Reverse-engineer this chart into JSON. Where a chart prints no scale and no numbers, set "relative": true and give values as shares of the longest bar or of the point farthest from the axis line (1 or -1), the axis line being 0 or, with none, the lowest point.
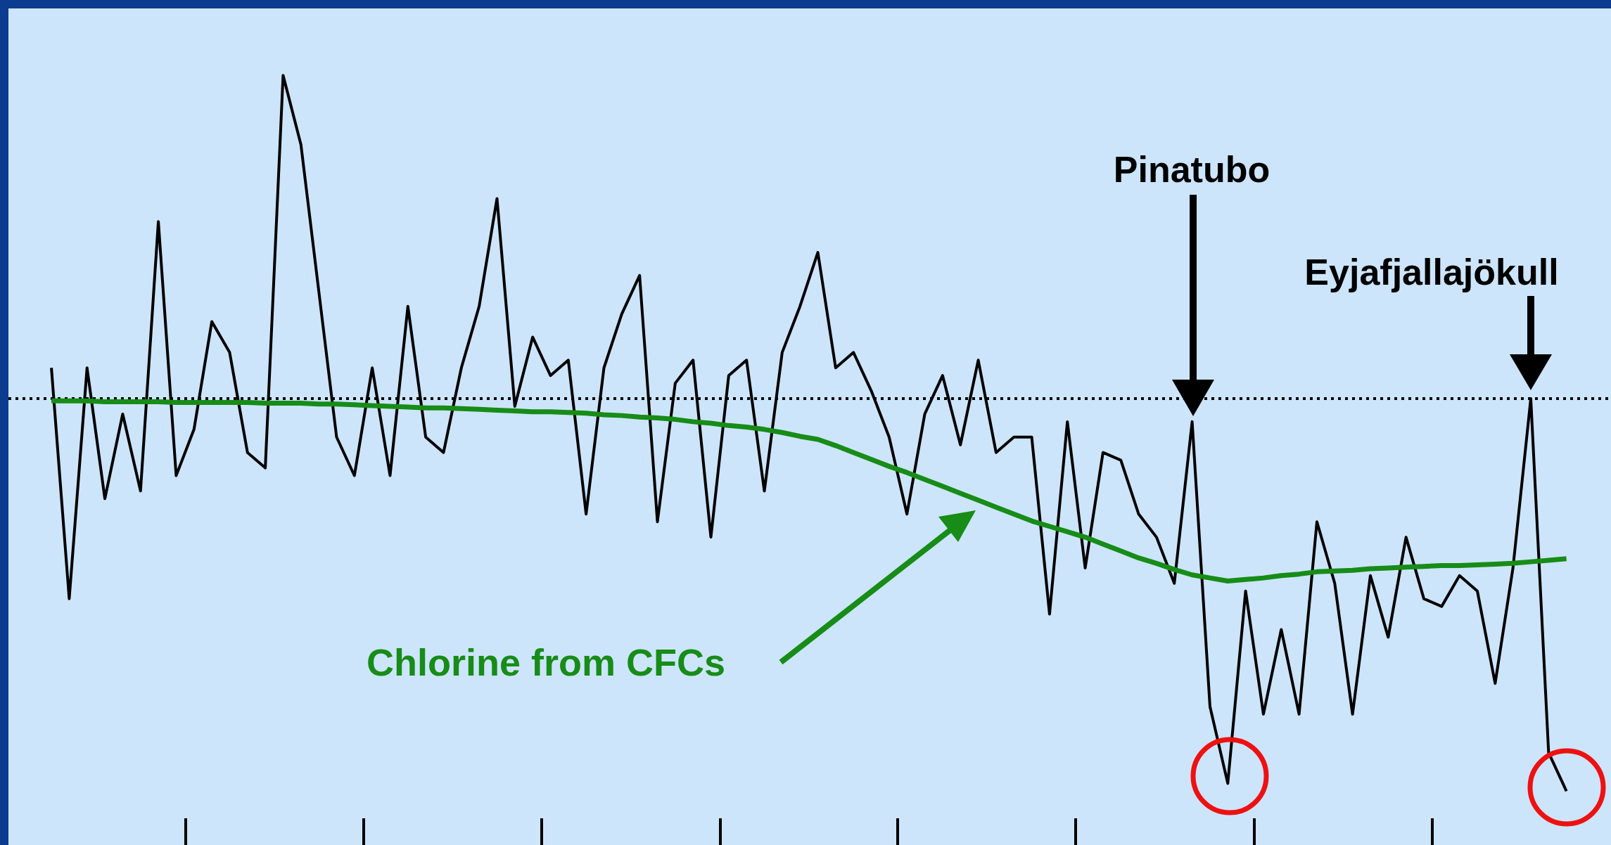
{
  "chart_data": {
    "type": "line",
    "relative": true,
    "categories": [
      null,
      null,
      null,
      null,
      null,
      null,
      null,
      null,
      null,
      null,
      null,
      null,
      null,
      null,
      null,
      null,
      null,
      null,
      null,
      null,
      null,
      null,
      null,
      null,
      null,
      null,
      null,
      null,
      null,
      null,
      null,
      null,
      null,
      null,
      null,
      null,
      null,
      null,
      null,
      null,
      null,
      null,
      null,
      null,
      null,
      null,
      null,
      null,
      null,
      null,
      null,
      null,
      null,
      null,
      null,
      null,
      null,
      null,
      null,
      null,
      null,
      null,
      null,
      null,
      null,
      null,
      null,
      null,
      null,
      null,
      null,
      null,
      null,
      null,
      null,
      null,
      null,
      null,
      null,
      null,
      null,
      null,
      null,
      null,
      null,
      null
    ],
    "series": [
      {
        "color": "#000000",
        "values": [
          0.62,
          0.32,
          0.62,
          0.45,
          0.56,
          0.46,
          0.81,
          0.48,
          0.54,
          0.68,
          0.64,
          0.51,
          0.49,
          1,
          0.91,
          0.72,
          0.53,
          0.48,
          0.62,
          0.48,
          0.7,
          0.53,
          0.51,
          0.62,
          0.7,
          0.84,
          0.57,
          0.66,
          0.61,
          0.63,
          0.43,
          0.62,
          0.69,
          0.74,
          0.42,
          0.6,
          0.63,
          0.4,
          0.61,
          0.63,
          0.46,
          0.64,
          0.7,
          0.77,
          0.62,
          0.64,
          0.59,
          0.53,
          0.43,
          0.56,
          0.61,
          0.52,
          0.63,
          0.51,
          0.53,
          0.53,
          0.3,
          0.55,
          0.36,
          0.51,
          0.5,
          0.43,
          0.4,
          0.34,
          0.55,
          0.18,
          0.08,
          0.33,
          0.17,
          0.28,
          0.17,
          0.42,
          0.34,
          0.17,
          0.35,
          0.27,
          0.4,
          0.32,
          0.31,
          0.35,
          0.33,
          0.21,
          0.36,
          0.58,
          0.12,
          0.07
        ]
      },
      {
        "color": "#178c17",
        "values": [
          0.577,
          0.577,
          0.577,
          0.576,
          0.576,
          0.576,
          0.576,
          0.575,
          0.575,
          0.575,
          0.575,
          0.575,
          0.574,
          0.574,
          0.574,
          0.573,
          0.573,
          0.572,
          0.571,
          0.57,
          0.569,
          0.568,
          0.568,
          0.567,
          0.566,
          0.565,
          0.564,
          0.563,
          0.563,
          0.562,
          0.561,
          0.559,
          0.558,
          0.556,
          0.555,
          0.553,
          0.55,
          0.548,
          0.545,
          0.543,
          0.54,
          0.536,
          0.531,
          0.527,
          0.519,
          0.51,
          0.501,
          0.492,
          0.484,
          0.475,
          0.466,
          0.457,
          0.448,
          0.439,
          0.43,
          0.421,
          0.414,
          0.407,
          0.4,
          0.391,
          0.382,
          0.373,
          0.366,
          0.358,
          0.351,
          0.347,
          0.343,
          0.345,
          0.347,
          0.35,
          0.352,
          0.355,
          0.356,
          0.357,
          0.359,
          0.36,
          0.361,
          0.362,
          0.363,
          0.363,
          0.364,
          0.365,
          0.366,
          0.368,
          0.37,
          0.372
        ]
      }
    ],
    "ref_lines": [
      {
        "axis": "y",
        "value": 0.58,
        "color": "#000000",
        "line_style": "dotted"
      }
    ],
    "annotations": [
      "Pinatubo",
      "Eyjafjallajökull",
      "Chlorine from CFCs"
    ]
  }
}
